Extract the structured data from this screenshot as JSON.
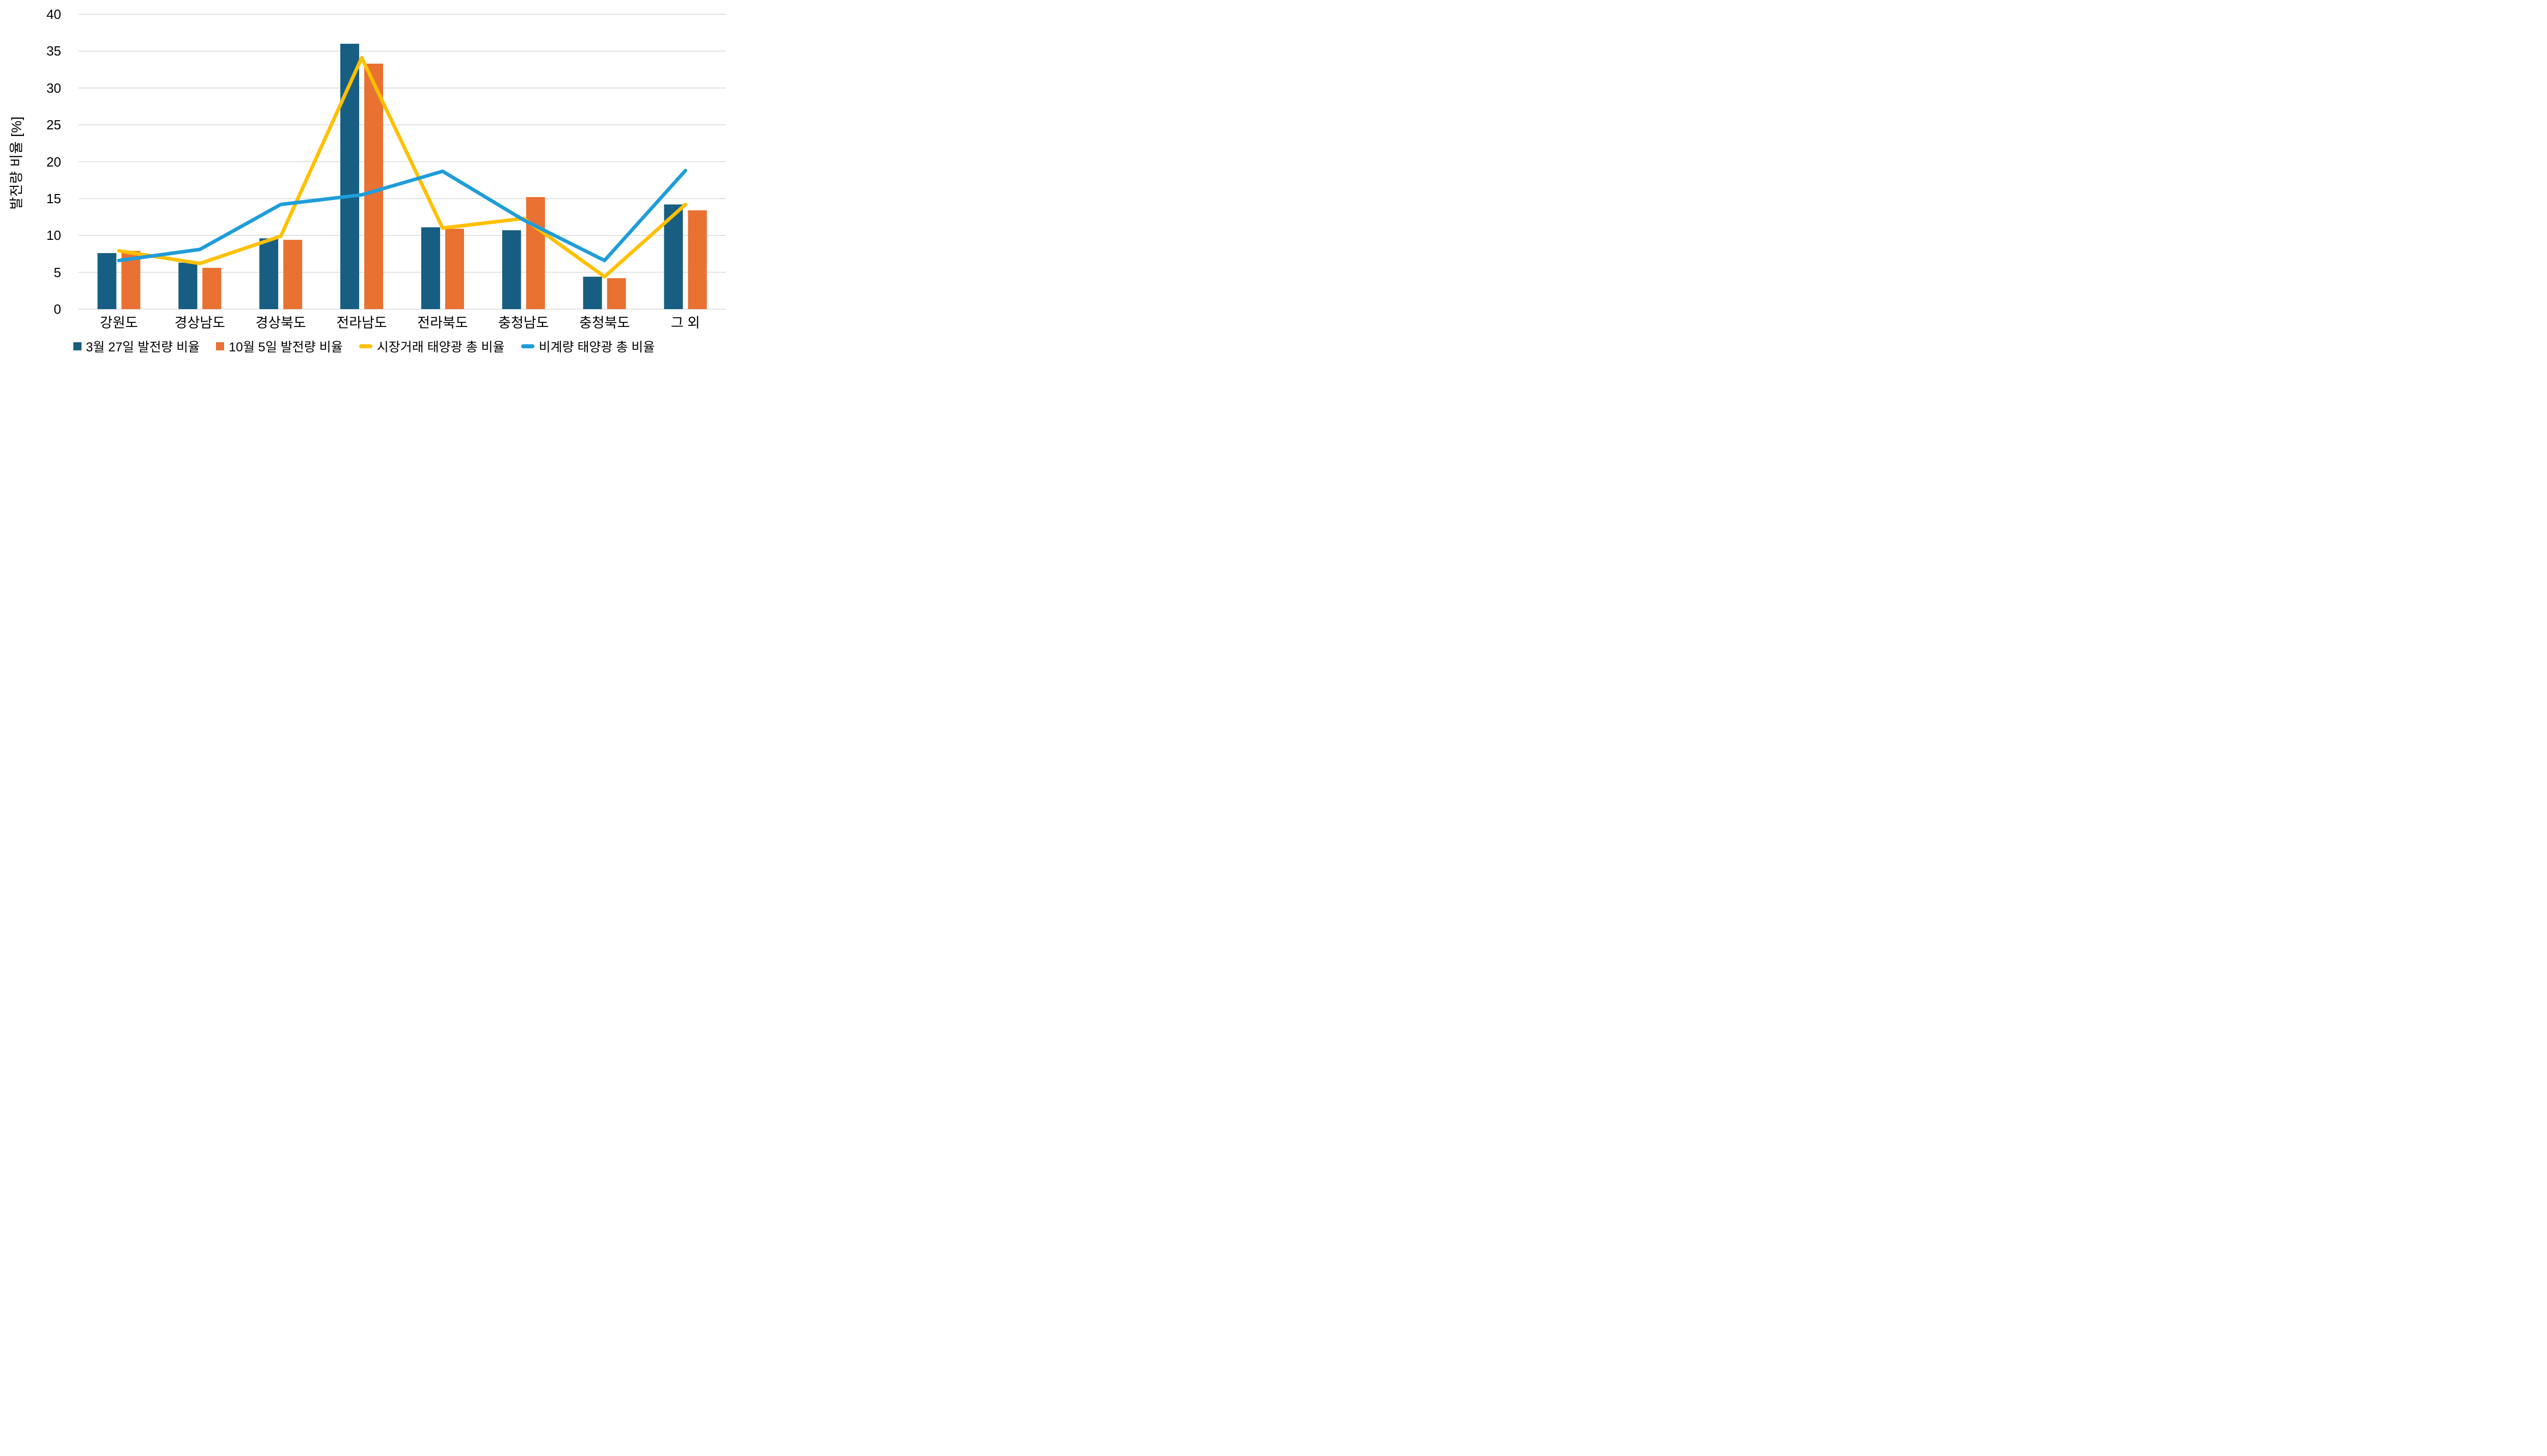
{
  "chart_data": {
    "type": "combo-bar-line",
    "title": "",
    "xlabel": "",
    "ylabel": "발전량 비율 [%]",
    "ylim": [
      0,
      40
    ],
    "ytick_step": 5,
    "yticks": [
      "0",
      "5",
      "10",
      "15",
      "20",
      "25",
      "30",
      "35",
      "40"
    ],
    "grid": "horizontal-only",
    "legend_position": "bottom",
    "categories": [
      "강원도",
      "경상남도",
      "경상북도",
      "전라남도",
      "전라북도",
      "충청남도",
      "충청북도",
      "그 외"
    ],
    "series": [
      {
        "name": "3월 27일 발전량 비율",
        "type": "bar",
        "color": "#175E82",
        "values": [
          7.6,
          6.3,
          9.6,
          36.0,
          11.1,
          10.7,
          4.4,
          14.2
        ]
      },
      {
        "name": "10월 5일 발전량 비율",
        "type": "bar",
        "color": "#E97132",
        "values": [
          7.9,
          5.6,
          9.4,
          33.3,
          10.9,
          15.2,
          4.2,
          13.4
        ]
      },
      {
        "name": "시장거래 태양광 총 비율",
        "type": "line",
        "color": "#FFC000",
        "values": [
          7.9,
          6.2,
          9.9,
          34.1,
          11.0,
          12.3,
          4.4,
          14.2
        ]
      },
      {
        "name": "비계량 태양광 총 비율",
        "type": "line",
        "color": "#1F9DD9",
        "values": [
          6.6,
          8.1,
          14.2,
          15.5,
          18.7,
          12.1,
          6.6,
          18.8
        ]
      }
    ],
    "colors": {
      "gridline": "#D9D9D9",
      "text": "#000000",
      "background": "#FFFFFF"
    }
  }
}
